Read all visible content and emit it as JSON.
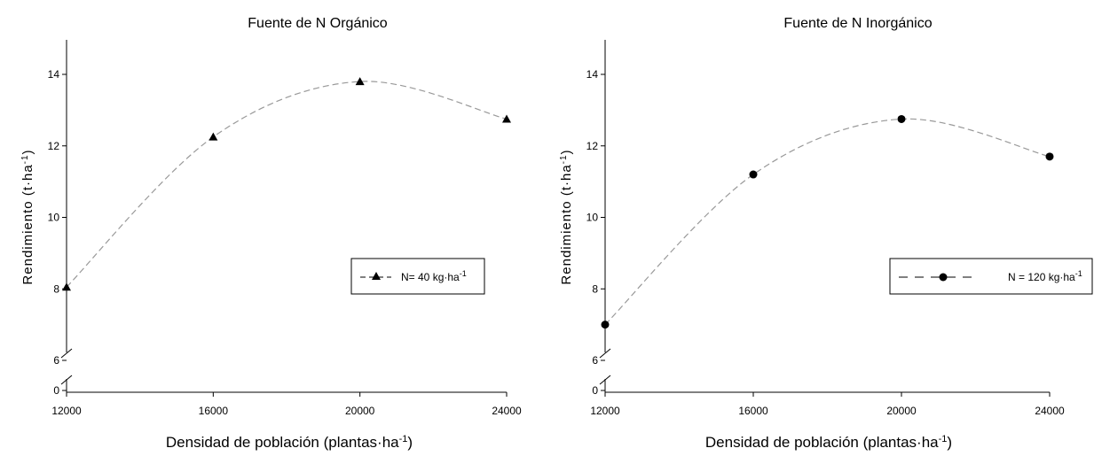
{
  "chart_data": [
    {
      "type": "line",
      "title": "Fuente de N Orgánico",
      "xlabel": "Densidad de población (plantas·ha⁻¹)",
      "ylabel": "Rendimiento (t·ha⁻¹)",
      "x": [
        12000,
        16000,
        20000,
        24000
      ],
      "x_ticks": [
        "12000",
        "16000",
        "20000",
        "24000"
      ],
      "y_ticks": [
        "0",
        "6",
        "8",
        "10",
        "12",
        "14"
      ],
      "ylim": [
        6,
        15
      ],
      "y_axis_break": "between 0 and 6",
      "grid": false,
      "legend_position": "right",
      "series": [
        {
          "name": "N= 40 kg·ha⁻¹",
          "marker": "triangle",
          "line_style": "dashed",
          "color": "#000000",
          "line_color": "#999999",
          "values": [
            8.05,
            12.25,
            13.8,
            12.75
          ]
        }
      ]
    },
    {
      "type": "line",
      "title": "Fuente de N Inorgánico",
      "xlabel": "Densidad de población (plantas·ha⁻¹)",
      "ylabel": "Rendimiento (t·ha⁻¹)",
      "x": [
        12000,
        16000,
        20000,
        24000
      ],
      "x_ticks": [
        "12000",
        "16000",
        "20000",
        "24000"
      ],
      "y_ticks": [
        "0",
        "6",
        "8",
        "10",
        "12",
        "14"
      ],
      "ylim": [
        6,
        15
      ],
      "y_axis_break": "between 0 and 6",
      "grid": false,
      "legend_position": "right",
      "series": [
        {
          "name": "N = 120 kg·ha⁻¹",
          "marker": "circle",
          "line_style": "dashed",
          "color": "#000000",
          "line_color": "#999999",
          "values": [
            7.0,
            11.2,
            12.75,
            11.7
          ]
        }
      ]
    }
  ]
}
